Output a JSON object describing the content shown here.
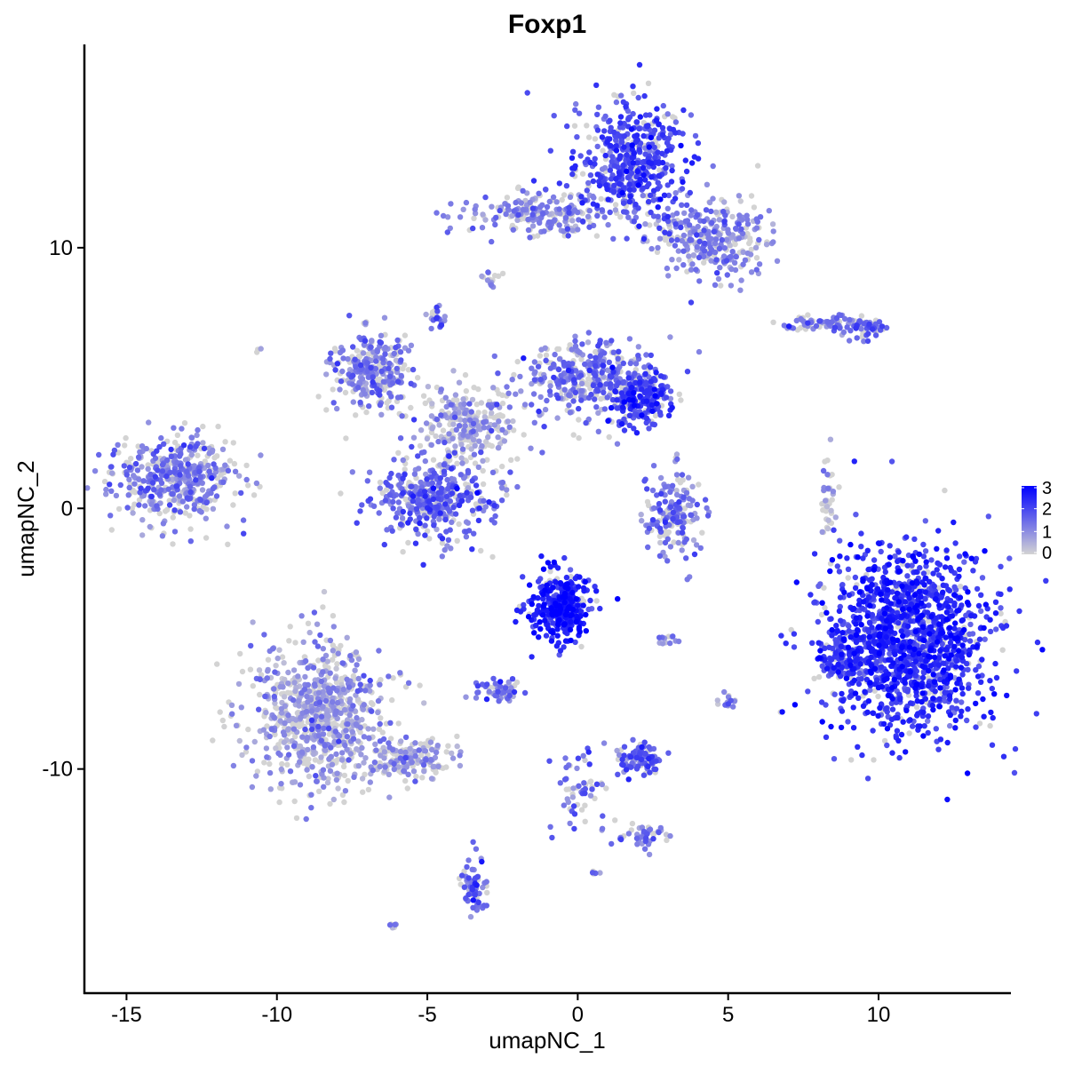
{
  "chart_data": {
    "type": "scatter",
    "title": "Foxp1",
    "xlabel": "umapNC_1",
    "ylabel": "umapNC_2",
    "xlim": [
      -16.4,
      14.4
    ],
    "ylim": [
      -18.6,
      17.8
    ],
    "x_ticks": [
      -15,
      -10,
      -5,
      0,
      5,
      10
    ],
    "x_tick_labels": [
      "-15",
      "-10",
      "-5",
      "0",
      "5",
      "10"
    ],
    "y_ticks": [
      -10,
      0,
      10
    ],
    "y_tick_labels": [
      "-10",
      "0",
      "10"
    ],
    "grid": false,
    "color_scale": {
      "low": "#d3d3d3",
      "high": "#0000ff",
      "range": [
        0,
        3
      ],
      "ticks": [
        0,
        1,
        2,
        3
      ],
      "tick_labels": [
        "0",
        "1",
        "2",
        "3"
      ],
      "position": "right"
    },
    "clusters": [
      {
        "cx": 1.8,
        "cy": 13.3,
        "sx": 0.9,
        "sy": 1.2,
        "n": 500,
        "expr": 1.9
      },
      {
        "cx": 4.5,
        "cy": 10.4,
        "sx": 0.9,
        "sy": 0.8,
        "n": 300,
        "expr": 1.2
      },
      {
        "cx": -1.3,
        "cy": 11.3,
        "sx": 1.4,
        "sy": 0.4,
        "n": 220,
        "expr": 1.1
      },
      {
        "cx": -2.9,
        "cy": 8.8,
        "sx": 0.15,
        "sy": 0.2,
        "n": 15,
        "expr": 1.3
      },
      {
        "cx": -4.7,
        "cy": 7.3,
        "sx": 0.15,
        "sy": 0.2,
        "n": 20,
        "expr": 1.6
      },
      {
        "cx": -6.8,
        "cy": 5.2,
        "sx": 0.7,
        "sy": 0.8,
        "n": 300,
        "expr": 1.2
      },
      {
        "cx": -4.8,
        "cy": 0.4,
        "sx": 1.0,
        "sy": 0.8,
        "n": 420,
        "expr": 1.5
      },
      {
        "cx": -3.6,
        "cy": 3.2,
        "sx": 0.8,
        "sy": 0.8,
        "n": 260,
        "expr": 0.8
      },
      {
        "cx": 0.3,
        "cy": 5.0,
        "sx": 1.1,
        "sy": 0.7,
        "n": 380,
        "expr": 1.4
      },
      {
        "cx": 2.1,
        "cy": 4.2,
        "sx": 0.5,
        "sy": 0.5,
        "n": 200,
        "expr": 2.0
      },
      {
        "cx": -13.3,
        "cy": 1.2,
        "sx": 1.1,
        "sy": 0.8,
        "n": 450,
        "expr": 1.2
      },
      {
        "cx": 3.2,
        "cy": -0.3,
        "sx": 0.5,
        "sy": 0.8,
        "n": 170,
        "expr": 1.3
      },
      {
        "cx": 11.0,
        "cy": -5.0,
        "sx": 1.3,
        "sy": 1.8,
        "n": 1400,
        "expr": 2.3
      },
      {
        "cx": 8.8,
        "cy": -5.8,
        "sx": 0.4,
        "sy": 0.7,
        "n": 120,
        "expr": 2.0
      },
      {
        "cx": -0.6,
        "cy": -3.8,
        "sx": 0.5,
        "sy": 0.7,
        "n": 350,
        "expr": 2.5
      },
      {
        "cx": -8.7,
        "cy": -8.0,
        "sx": 1.1,
        "sy": 1.4,
        "n": 800,
        "expr": 0.8
      },
      {
        "cx": -5.5,
        "cy": -9.6,
        "sx": 0.7,
        "sy": 0.4,
        "n": 150,
        "expr": 0.9
      },
      {
        "cx": -2.6,
        "cy": -7.0,
        "sx": 0.4,
        "sy": 0.2,
        "n": 60,
        "expr": 1.3
      },
      {
        "cx": 2.0,
        "cy": -9.6,
        "sx": 0.4,
        "sy": 0.3,
        "n": 100,
        "expr": 1.6
      },
      {
        "cx": 0.0,
        "cy": -10.8,
        "sx": 0.5,
        "sy": 1.0,
        "n": 60,
        "expr": 1.5
      },
      {
        "cx": 2.2,
        "cy": -12.6,
        "sx": 0.4,
        "sy": 0.2,
        "n": 40,
        "expr": 1.3
      },
      {
        "cx": -3.5,
        "cy": -14.5,
        "sx": 0.2,
        "sy": 0.6,
        "n": 70,
        "expr": 1.4
      },
      {
        "cx": 8.0,
        "cy": 7.1,
        "sx": 0.8,
        "sy": 0.15,
        "n": 70,
        "expr": 1.2
      },
      {
        "cx": 9.5,
        "cy": 6.9,
        "sx": 0.4,
        "sy": 0.2,
        "n": 50,
        "expr": 1.6
      },
      {
        "cx": 8.3,
        "cy": 0.2,
        "sx": 0.15,
        "sy": 0.8,
        "n": 40,
        "expr": 0.6
      },
      {
        "cx": 5.0,
        "cy": -7.4,
        "sx": 0.15,
        "sy": 0.2,
        "n": 15,
        "expr": 1.2
      },
      {
        "cx": 0.6,
        "cy": -14.0,
        "sx": 0.08,
        "sy": 0.08,
        "n": 5,
        "expr": 1.5
      },
      {
        "cx": -6.1,
        "cy": -16.0,
        "sx": 0.1,
        "sy": 0.08,
        "n": 6,
        "expr": 1.2
      },
      {
        "cx": 3.0,
        "cy": -5.0,
        "sx": 0.3,
        "sy": 0.1,
        "n": 12,
        "expr": 1.0
      },
      {
        "cx": -10.6,
        "cy": 6.1,
        "sx": 0.06,
        "sy": 0.06,
        "n": 3,
        "expr": 0.8
      }
    ]
  }
}
